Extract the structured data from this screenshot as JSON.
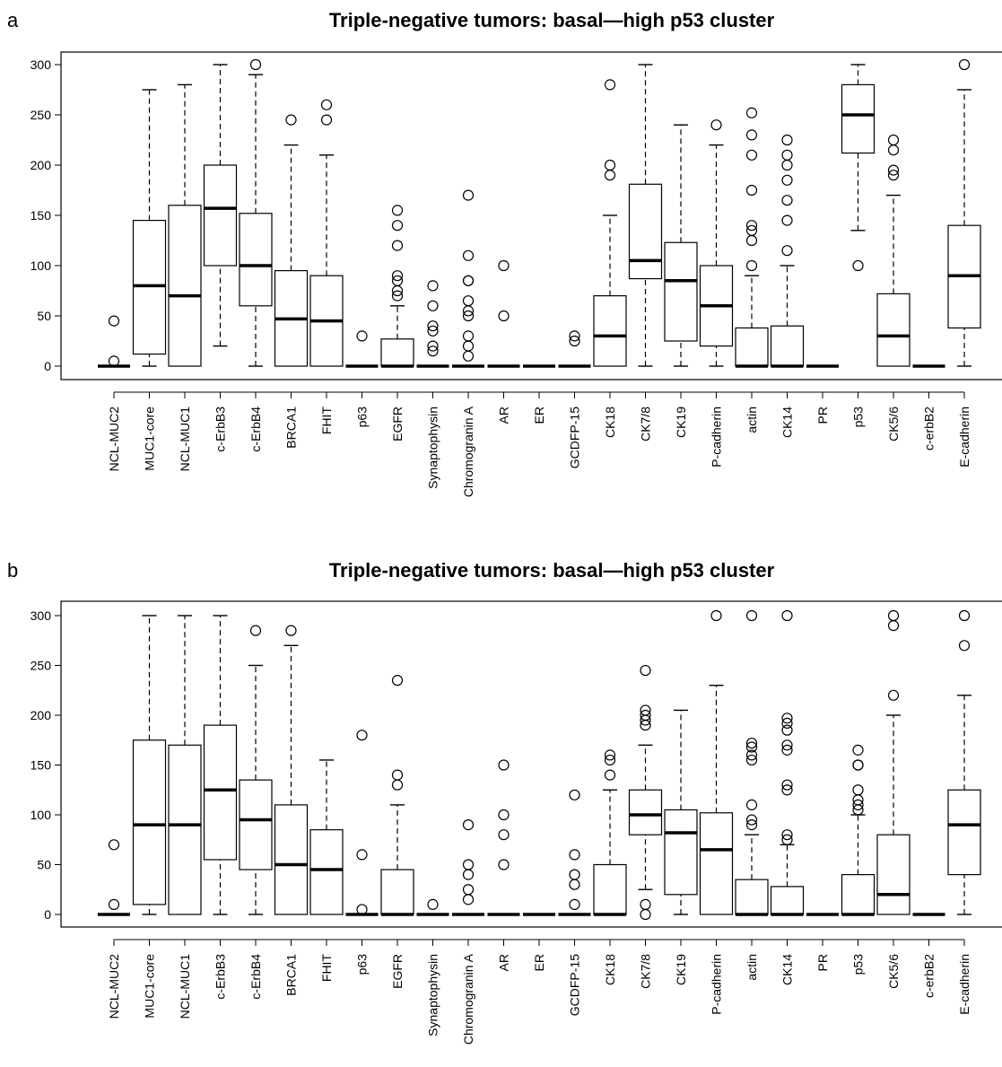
{
  "chart_data": [
    {
      "type": "boxplot",
      "panel": "a",
      "title": "Triple-negative tumors: basal—high p53 cluster",
      "ylim": [
        0,
        300
      ],
      "yticks": [
        0,
        50,
        100,
        150,
        200,
        250,
        300
      ],
      "categories": [
        "NCL-MUC2",
        "MUC1-core",
        "NCL-MUC1",
        "c-ErbB3",
        "c-ErbB4",
        "BRCA1",
        "FHIT",
        "p63",
        "EGFR",
        "Synaptophysin",
        "Chromogranin A",
        "AR",
        "ER",
        "GCDFP-15",
        "CK18",
        "CK7/8",
        "CK19",
        "P-cadherin",
        "actin",
        "CK14",
        "PR",
        "p53",
        "CK5/6",
        "c-erbB2",
        "E-cadherin"
      ],
      "boxes": [
        {
          "min": 0,
          "q1": 0,
          "median": 0,
          "q3": 0,
          "max": 0,
          "outliers": [
            45,
            5
          ]
        },
        {
          "min": 0,
          "q1": 12,
          "median": 80,
          "q3": 145,
          "max": 275,
          "outliers": []
        },
        {
          "min": 0,
          "q1": 0,
          "median": 70,
          "q3": 160,
          "max": 280,
          "outliers": []
        },
        {
          "min": 20,
          "q1": 100,
          "median": 157,
          "q3": 200,
          "max": 300,
          "outliers": []
        },
        {
          "min": 0,
          "q1": 60,
          "median": 100,
          "q3": 152,
          "max": 290,
          "outliers": [
            300
          ]
        },
        {
          "min": 0,
          "q1": 0,
          "median": 47,
          "q3": 95,
          "max": 220,
          "outliers": [
            245
          ]
        },
        {
          "min": 0,
          "q1": 0,
          "median": 45,
          "q3": 90,
          "max": 210,
          "outliers": [
            260,
            245
          ]
        },
        {
          "min": 0,
          "q1": 0,
          "median": 0,
          "q3": 0,
          "max": 0,
          "outliers": [
            30
          ]
        },
        {
          "min": 0,
          "q1": 0,
          "median": 0,
          "q3": 27,
          "max": 60,
          "outliers": [
            155,
            140,
            120,
            90,
            85,
            75,
            70
          ]
        },
        {
          "min": 0,
          "q1": 0,
          "median": 0,
          "q3": 0,
          "max": 0,
          "outliers": [
            80,
            60,
            40,
            35,
            20,
            15
          ]
        },
        {
          "min": 0,
          "q1": 0,
          "median": 0,
          "q3": 0,
          "max": 0,
          "outliers": [
            170,
            110,
            85,
            85,
            65,
            55,
            50,
            30,
            20,
            10
          ]
        },
        {
          "min": 0,
          "q1": 0,
          "median": 0,
          "q3": 0,
          "max": 0,
          "outliers": [
            100,
            50
          ]
        },
        {
          "min": 0,
          "q1": 0,
          "median": 0,
          "q3": 0,
          "max": 0,
          "outliers": []
        },
        {
          "min": 0,
          "q1": 0,
          "median": 0,
          "q3": 0,
          "max": 0,
          "outliers": [
            30,
            25
          ]
        },
        {
          "min": 0,
          "q1": 0,
          "median": 30,
          "q3": 70,
          "max": 150,
          "outliers": [
            280,
            200,
            190
          ]
        },
        {
          "min": 0,
          "q1": 87,
          "median": 105,
          "q3": 181,
          "max": 300,
          "outliers": []
        },
        {
          "min": 0,
          "q1": 25,
          "median": 85,
          "q3": 123,
          "max": 240,
          "outliers": []
        },
        {
          "min": 0,
          "q1": 20,
          "median": 60,
          "q3": 100,
          "max": 220,
          "outliers": [
            240
          ]
        },
        {
          "min": 0,
          "q1": 0,
          "median": 0,
          "q3": 38,
          "max": 90,
          "outliers": [
            252,
            230,
            210,
            175,
            140,
            135,
            125,
            100
          ]
        },
        {
          "min": 0,
          "q1": 0,
          "median": 0,
          "q3": 40,
          "max": 100,
          "outliers": [
            225,
            210,
            200,
            185,
            165,
            145,
            115
          ]
        },
        {
          "min": 0,
          "q1": 0,
          "median": 0,
          "q3": 0,
          "max": 0,
          "outliers": []
        },
        {
          "min": 135,
          "q1": 212,
          "median": 250,
          "q3": 280,
          "max": 300,
          "outliers": [
            100
          ]
        },
        {
          "min": 0,
          "q1": 0,
          "median": 30,
          "q3": 72,
          "max": 170,
          "outliers": [
            225,
            215,
            195,
            190
          ]
        },
        {
          "min": 0,
          "q1": 0,
          "median": 0,
          "q3": 0,
          "max": 0,
          "outliers": []
        },
        {
          "min": 0,
          "q1": 38,
          "median": 90,
          "q3": 140,
          "max": 275,
          "outliers": [
            300
          ]
        }
      ]
    },
    {
      "type": "boxplot",
      "panel": "b",
      "title": "Triple-negative tumors: basal—high p53 cluster",
      "ylim": [
        0,
        300
      ],
      "yticks": [
        0,
        50,
        100,
        150,
        200,
        250,
        300
      ],
      "categories": [
        "NCL-MUC2",
        "MUC1-core",
        "NCL-MUC1",
        "c-ErbB3",
        "c-ErbB4",
        "BRCA1",
        "FHIT",
        "p63",
        "EGFR",
        "Synaptophysin",
        "Chromogranin A",
        "AR",
        "ER",
        "GCDFP-15",
        "CK18",
        "CK7/8",
        "CK19",
        "P-cadherin",
        "actin",
        "CK14",
        "PR",
        "p53",
        "CK5/6",
        "c-erbB2",
        "E-cadherin"
      ],
      "boxes": [
        {
          "min": 0,
          "q1": 0,
          "median": 0,
          "q3": 0,
          "max": 0,
          "outliers": [
            70,
            10
          ]
        },
        {
          "min": 0,
          "q1": 10,
          "median": 90,
          "q3": 175,
          "max": 300,
          "outliers": []
        },
        {
          "min": 0,
          "q1": 0,
          "median": 90,
          "q3": 170,
          "max": 300,
          "outliers": []
        },
        {
          "min": 0,
          "q1": 55,
          "median": 125,
          "q3": 190,
          "max": 300,
          "outliers": []
        },
        {
          "min": 0,
          "q1": 45,
          "median": 95,
          "q3": 135,
          "max": 250,
          "outliers": [
            285
          ]
        },
        {
          "min": 0,
          "q1": 0,
          "median": 50,
          "q3": 110,
          "max": 270,
          "outliers": [
            285
          ]
        },
        {
          "min": 0,
          "q1": 0,
          "median": 45,
          "q3": 85,
          "max": 155,
          "outliers": []
        },
        {
          "min": 0,
          "q1": 0,
          "median": 0,
          "q3": 0,
          "max": 0,
          "outliers": [
            180,
            60,
            5
          ]
        },
        {
          "min": 0,
          "q1": 0,
          "median": 0,
          "q3": 45,
          "max": 110,
          "outliers": [
            235,
            140,
            130
          ]
        },
        {
          "min": 0,
          "q1": 0,
          "median": 0,
          "q3": 0,
          "max": 0,
          "outliers": [
            10
          ]
        },
        {
          "min": 0,
          "q1": 0,
          "median": 0,
          "q3": 0,
          "max": 0,
          "outliers": [
            90,
            50,
            40,
            25,
            15
          ]
        },
        {
          "min": 0,
          "q1": 0,
          "median": 0,
          "q3": 0,
          "max": 0,
          "outliers": [
            150,
            100,
            80,
            50
          ]
        },
        {
          "min": 0,
          "q1": 0,
          "median": 0,
          "q3": 0,
          "max": 0,
          "outliers": []
        },
        {
          "min": 0,
          "q1": 0,
          "median": 0,
          "q3": 0,
          "max": 0,
          "outliers": [
            120,
            60,
            40,
            30,
            10
          ]
        },
        {
          "min": 0,
          "q1": 0,
          "median": 0,
          "q3": 50,
          "max": 125,
          "outliers": [
            160,
            155,
            140
          ]
        },
        {
          "min": 25,
          "q1": 80,
          "median": 100,
          "q3": 125,
          "max": 170,
          "outliers": [
            245,
            205,
            200,
            195,
            190,
            10,
            0
          ]
        },
        {
          "min": 0,
          "q1": 20,
          "median": 82,
          "q3": 105,
          "max": 205,
          "outliers": []
        },
        {
          "min": 0,
          "q1": 0,
          "median": 65,
          "q3": 102,
          "max": 230,
          "outliers": [
            300
          ]
        },
        {
          "min": 0,
          "q1": 0,
          "median": 0,
          "q3": 35,
          "max": 80,
          "outliers": [
            300,
            172,
            168,
            160,
            155,
            110,
            95,
            90
          ]
        },
        {
          "min": 0,
          "q1": 0,
          "median": 0,
          "q3": 28,
          "max": 70,
          "outliers": [
            300,
            197,
            192,
            185,
            170,
            165,
            130,
            125,
            80,
            75
          ]
        },
        {
          "min": 0,
          "q1": 0,
          "median": 0,
          "q3": 0,
          "max": 0,
          "outliers": []
        },
        {
          "min": 0,
          "q1": 0,
          "median": 0,
          "q3": 40,
          "max": 100,
          "outliers": [
            165,
            150,
            150,
            125,
            115,
            110,
            105
          ]
        },
        {
          "min": 0,
          "q1": 0,
          "median": 20,
          "q3": 80,
          "max": 200,
          "outliers": [
            300,
            290,
            220
          ]
        },
        {
          "min": 0,
          "q1": 0,
          "median": 0,
          "q3": 0,
          "max": 0,
          "outliers": []
        },
        {
          "min": 0,
          "q1": 40,
          "median": 90,
          "q3": 125,
          "max": 220,
          "outliers": [
            300,
            270
          ]
        }
      ]
    }
  ]
}
